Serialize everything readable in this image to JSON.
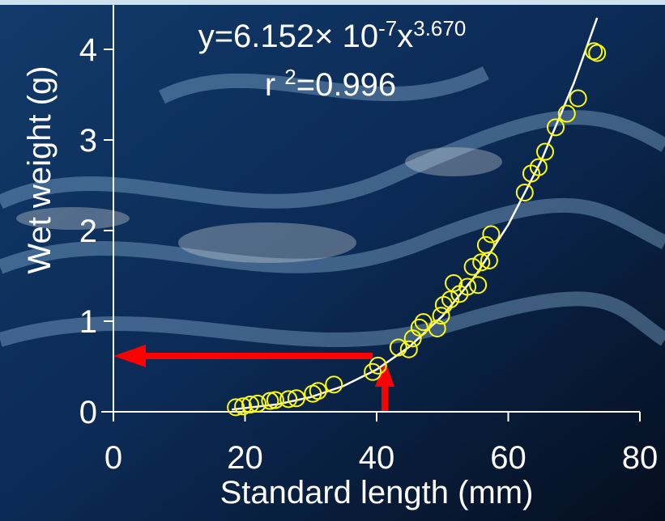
{
  "chart_data": {
    "type": "scatter",
    "x_label": "Standard length (mm)",
    "y_label": "Wet weight (g)",
    "equation": {
      "lead": "y=6.152× 10",
      "exp": "-7",
      "var": "x",
      "power": "3.670"
    },
    "r_squared": {
      "lead": "r ",
      "sup": "2",
      "rest": "=0.996"
    },
    "x": [
      18.6,
      19.7,
      20.8,
      21.9,
      23.8,
      24.6,
      26.6,
      27.8,
      30.3,
      31.1,
      33.5,
      39.4,
      40.2,
      43.3,
      44.9,
      45.5,
      46.5,
      47.1,
      49.2,
      49.8,
      50.2,
      51.2,
      51.7,
      52.6,
      53.8,
      55.4,
      54.6,
      55.9,
      57.1,
      56.6,
      57.4,
      62.5,
      63.5,
      64.6,
      65.6,
      67.2,
      68.9,
      70.6,
      73.0,
      73.5
    ],
    "values": [
      0.05,
      0.06,
      0.08,
      0.09,
      0.12,
      0.13,
      0.14,
      0.15,
      0.2,
      0.23,
      0.3,
      0.44,
      0.51,
      0.71,
      0.69,
      0.81,
      0.93,
      0.99,
      0.92,
      1.06,
      1.18,
      1.24,
      1.42,
      1.3,
      1.38,
      1.4,
      1.6,
      1.65,
      1.67,
      1.84,
      1.96,
      2.42,
      2.63,
      2.7,
      2.87,
      3.14,
      3.29,
      3.46,
      3.98,
      3.96
    ],
    "color": "#ffff00",
    "fit": {
      "color": "#ffffff",
      "x": [
        18,
        25,
        30,
        35,
        40,
        45,
        50,
        55,
        60,
        65,
        70,
        73.5
      ],
      "values": [
        0.0249,
        0.0831,
        0.1622,
        0.2856,
        0.4663,
        0.7184,
        1.0573,
        1.5002,
        2.0646,
        2.7693,
        3.635,
        4.348
      ]
    },
    "xlim": [
      0,
      80
    ],
    "ylim": [
      0,
      4.4
    ],
    "xticks": [
      0,
      20,
      40,
      60,
      80
    ],
    "yticks": [
      0,
      1,
      2,
      3,
      4
    ]
  }
}
